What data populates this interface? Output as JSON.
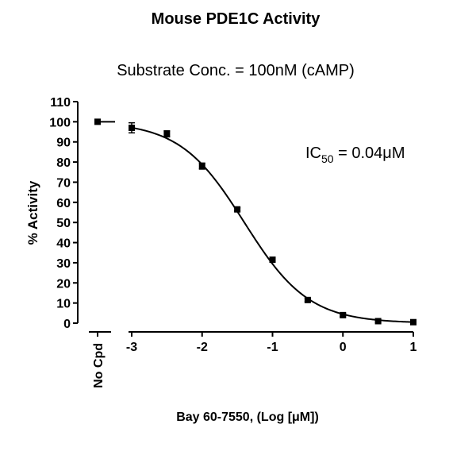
{
  "chart_data": {
    "type": "scatter",
    "title": "Mouse PDE1C Activity",
    "subtitle": "Substrate Conc. = 100nM (cAMP)",
    "x_label": "Bay 60-7550, (Log [μM])",
    "y_label": "% Activity",
    "annotation": {
      "main": "IC",
      "sub": "50",
      "rest": " = 0.04μM"
    },
    "control": {
      "category": "No Cpd",
      "value": 100,
      "error": 0.6
    },
    "x": [
      -3,
      -2.5,
      -2,
      -1.5,
      -1,
      -0.5,
      0,
      0.5,
      1
    ],
    "series": [
      {
        "color": "#000000",
        "values": [
          97,
          94,
          78,
          56.5,
          31.5,
          11.5,
          4,
          1,
          0.5
        ],
        "errors": [
          2.5,
          1.5,
          1.5,
          0.8,
          0.8,
          0.8,
          0.8,
          0.5,
          0.8
        ]
      }
    ],
    "fit": {
      "top": 100,
      "bottom": 0,
      "log_ic50": -1.4,
      "hill": 0.95
    },
    "xlim": [
      -3,
      1
    ],
    "xticks": [
      -3,
      -2,
      -1,
      0,
      1
    ],
    "ylim": [
      0,
      110
    ],
    "yticks": [
      0,
      10,
      20,
      30,
      40,
      50,
      60,
      70,
      80,
      90,
      100,
      110
    ]
  }
}
